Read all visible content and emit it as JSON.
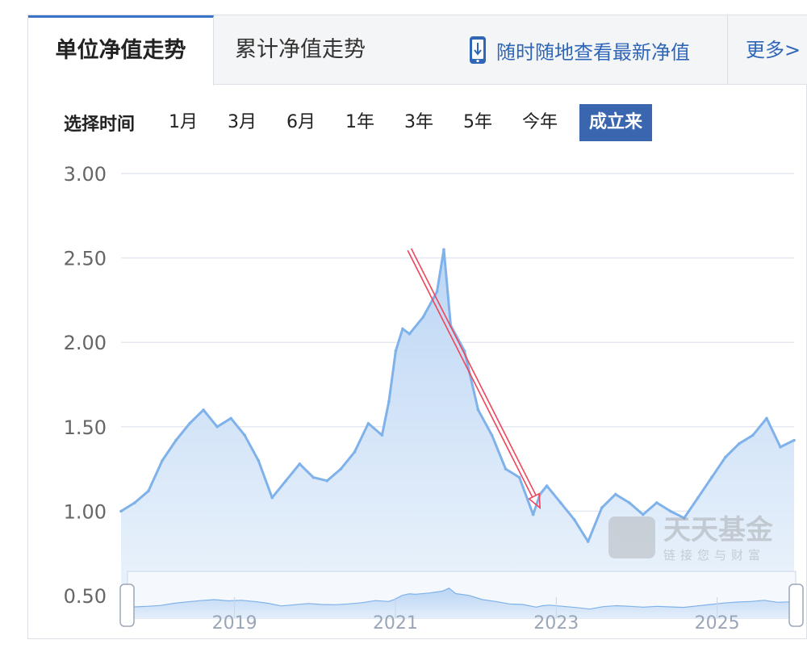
{
  "tabs": {
    "unit_nav": "单位净值走势",
    "cumulative_nav": "累计净值走势",
    "promo": "随时随地查看最新净值",
    "more": "更多>"
  },
  "range_selector": {
    "label": "选择时间",
    "options": [
      "1月",
      "3月",
      "6月",
      "1年",
      "3年",
      "5年",
      "今年",
      "成立来"
    ],
    "active": "成立来"
  },
  "colors": {
    "accent": "#3a66b0",
    "line": "#7fb2ea",
    "area": "#cfe2f8",
    "annotation_arrow": "#f0455a"
  },
  "watermark": {
    "brand": "天天基金",
    "slogan": "链接您与财富"
  },
  "chart_data": {
    "type": "area",
    "title": "",
    "xlabel": "",
    "ylabel": "",
    "y_ticks": [
      "3.00",
      "2.50",
      "2.00",
      "1.50",
      "1.00",
      "0.50"
    ],
    "ylim": [
      0.5,
      3.0
    ],
    "x_range": [
      "2017-10",
      "2025-12"
    ],
    "grid": true,
    "x": [
      "2017-10",
      "2017-12",
      "2018-02",
      "2018-04",
      "2018-06",
      "2018-08",
      "2018-10",
      "2018-12",
      "2019-02",
      "2019-04",
      "2019-06",
      "2019-08",
      "2019-10",
      "2019-12",
      "2020-02",
      "2020-04",
      "2020-06",
      "2020-08",
      "2020-10",
      "2020-12",
      "2021-01",
      "2021-02",
      "2021-03",
      "2021-04",
      "2021-06",
      "2021-08",
      "2021-09",
      "2021-10",
      "2021-12",
      "2022-02",
      "2022-04",
      "2022-06",
      "2022-08",
      "2022-10",
      "2022-11",
      "2022-12",
      "2023-02",
      "2023-04",
      "2023-06",
      "2023-08",
      "2023-10",
      "2023-12",
      "2024-02",
      "2024-04",
      "2024-06",
      "2024-08",
      "2024-10",
      "2024-12",
      "2025-02",
      "2025-04",
      "2025-06",
      "2025-08",
      "2025-10",
      "2025-12"
    ],
    "series": [
      {
        "values": [
          1.0,
          1.05,
          1.12,
          1.3,
          1.42,
          1.52,
          1.6,
          1.5,
          1.55,
          1.45,
          1.3,
          1.08,
          1.18,
          1.28,
          1.2,
          1.18,
          1.25,
          1.35,
          1.52,
          1.45,
          1.65,
          1.95,
          2.08,
          2.05,
          2.15,
          2.3,
          2.55,
          2.1,
          1.95,
          1.6,
          1.45,
          1.25,
          1.2,
          0.98,
          1.1,
          1.15,
          1.05,
          0.95,
          0.82,
          1.02,
          1.1,
          1.05,
          0.98,
          1.05,
          1.0,
          0.96,
          1.08,
          1.2,
          1.32,
          1.4,
          1.45,
          1.55,
          1.38,
          1.42
        ]
      }
    ],
    "overview": {
      "x_ticks": [
        "2019",
        "2021",
        "2023",
        "2025"
      ]
    },
    "annotation": {
      "type": "arrow",
      "from": [
        "2021-04",
        2.55
      ],
      "to": [
        "2022-11",
        1.02
      ]
    }
  }
}
